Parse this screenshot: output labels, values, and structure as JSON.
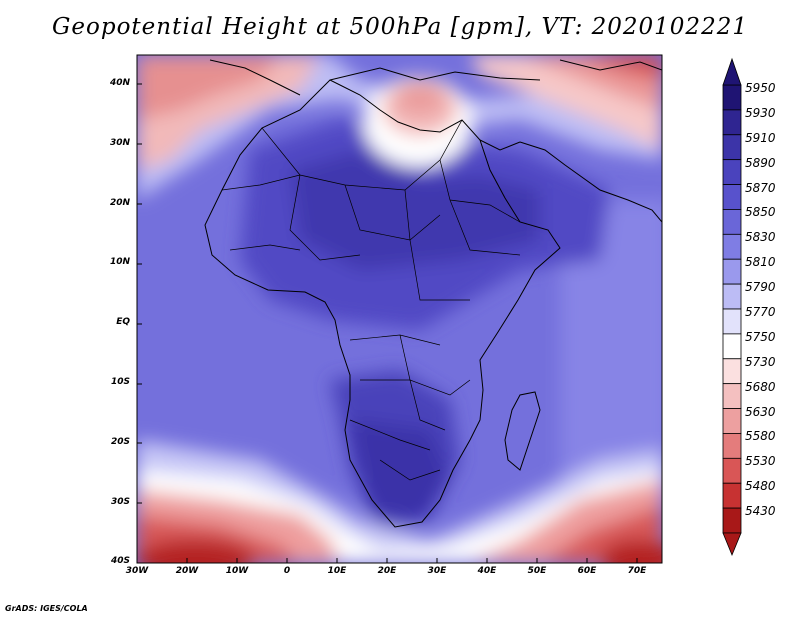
{
  "title": "Geopotential Height at 500hPa [gpm], VT: 2020102221",
  "credit": "GrADS: IGES/COLA",
  "lat_labels": [
    "40N",
    "30N",
    "20N",
    "10N",
    "EQ",
    "10S",
    "20S",
    "30S",
    "40S"
  ],
  "lon_labels": [
    "30W",
    "20W",
    "10W",
    "0",
    "10E",
    "20E",
    "30E",
    "40E",
    "50E",
    "60E",
    "70E"
  ],
  "colorbar": {
    "levels": [
      "5950",
      "5930",
      "5910",
      "5890",
      "5870",
      "5850",
      "5830",
      "5810",
      "5790",
      "5770",
      "5750",
      "5730",
      "5680",
      "5630",
      "5580",
      "5530",
      "5480",
      "5430"
    ],
    "colors": [
      "#1f1473",
      "#2f2591",
      "#3c34a8",
      "#4a43bd",
      "#5852cc",
      "#6a66d8",
      "#7f7de4",
      "#9a99ed",
      "#bcbcf5",
      "#e2e2fb",
      "#ffffff",
      "#fbe0e0",
      "#f4c0c0",
      "#eda0a0",
      "#e47c7c",
      "#d95656",
      "#c73232",
      "#a81818"
    ]
  }
}
